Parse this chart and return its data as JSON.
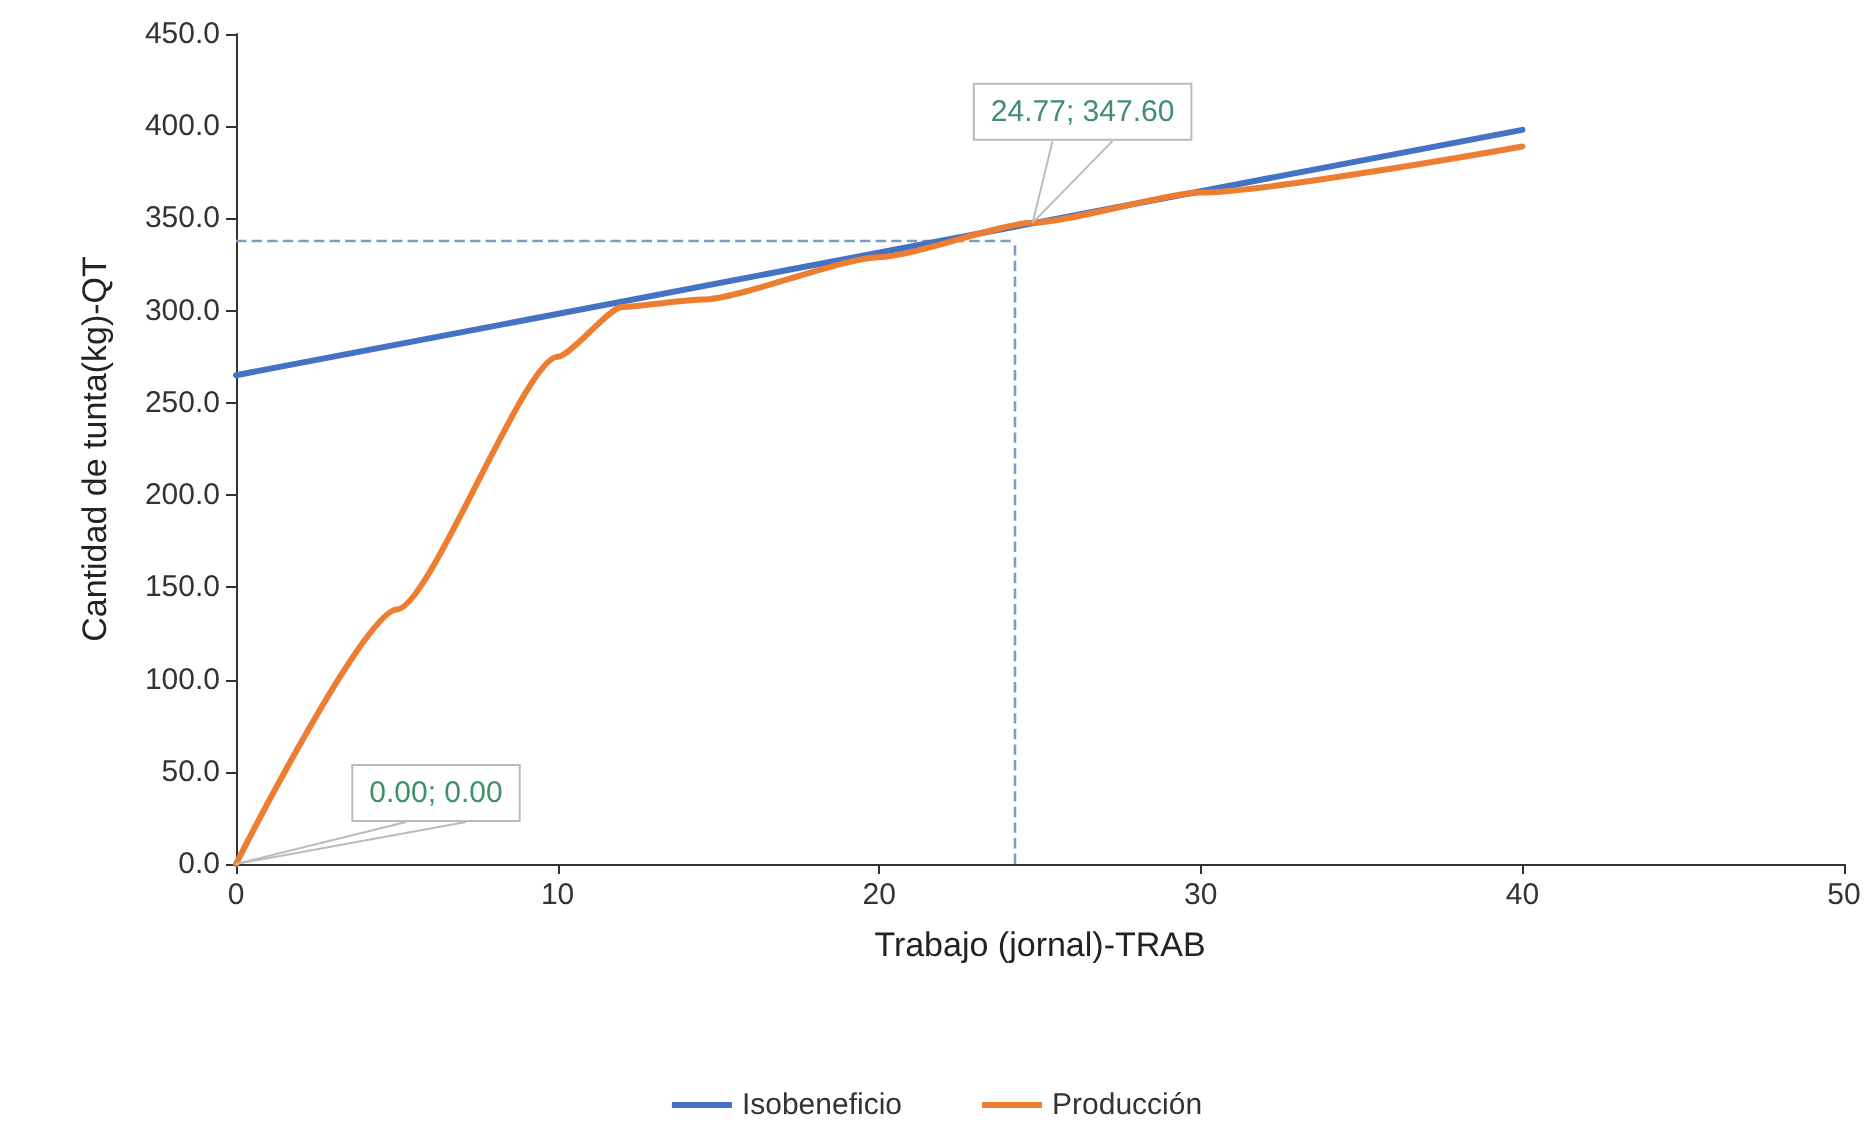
{
  "chart_data": {
    "type": "line",
    "xlabel": "Trabajo (jornal)-TRAB",
    "ylabel": "Cantidad de tunta(kg)-QT",
    "xlim": [
      0,
      50
    ],
    "xticks": [
      0,
      10,
      20,
      30,
      40,
      50
    ],
    "ylim": [
      0,
      450
    ],
    "yticks": [
      {
        "value": 0,
        "label": "0.0"
      },
      {
        "value": 50,
        "label": "50.0"
      },
      {
        "value": 100,
        "label": "100.0"
      },
      {
        "value": 150,
        "label": "150.0"
      },
      {
        "value": 200,
        "label": "200.0"
      },
      {
        "value": 250,
        "label": "250.0"
      },
      {
        "value": 300,
        "label": "300.0"
      },
      {
        "value": 350,
        "label": "350.0"
      },
      {
        "value": 400,
        "label": "400.0"
      },
      {
        "value": 450,
        "label": "450.0"
      }
    ],
    "series": [
      {
        "name": "Isobeneficio",
        "color": "#4472c4",
        "x": [
          0,
          40
        ],
        "values": [
          265,
          398
        ]
      },
      {
        "name": "Producción",
        "color": "#ed7d31",
        "x": [
          0,
          5,
          10,
          12,
          14.5,
          20,
          24.77,
          30,
          40
        ],
        "values": [
          0,
          138,
          275,
          302,
          306,
          329,
          347.6,
          364,
          389
        ]
      }
    ],
    "ref_lines": [
      {
        "axis": "y",
        "value": 338,
        "color": "#7f9cc0",
        "line_style": "dashed"
      },
      {
        "axis": "x",
        "value": 24.2,
        "color": "#7f9cc0",
        "line_style": "dashed"
      }
    ],
    "annotations": [
      {
        "text": "24.77; 347.60",
        "x": 24.77,
        "y": 347.6
      },
      {
        "text": "0.00; 0.00",
        "x": 0,
        "y": 0
      }
    ],
    "grid": false,
    "legend": "bottom",
    "marker": "none",
    "line_style": "solid"
  }
}
